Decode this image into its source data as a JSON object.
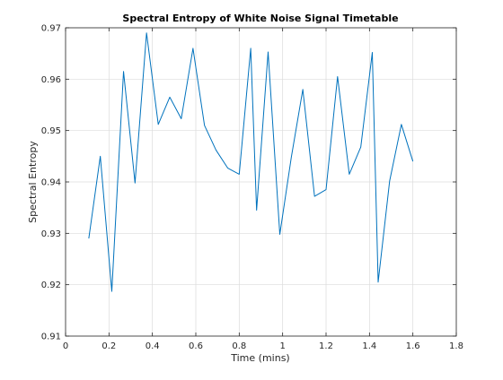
{
  "chart_data": {
    "type": "line",
    "title": "Spectral Entropy of White Noise Signal Timetable",
    "xlabel": "Time (mins)",
    "ylabel": "Spectral Entropy",
    "xlim": [
      0,
      1.8
    ],
    "ylim": [
      0.91,
      0.97
    ],
    "grid": true,
    "x_ticks": [
      0,
      0.2,
      0.4,
      0.6,
      0.8,
      1,
      1.2,
      1.4,
      1.6,
      1.8
    ],
    "x_tick_labels": [
      "0",
      "0.2",
      "0.4",
      "0.6",
      "0.8",
      "1",
      "1.2",
      "1.4",
      "1.6",
      "1.8"
    ],
    "y_ticks": [
      0.91,
      0.92,
      0.93,
      0.94,
      0.95,
      0.96,
      0.97
    ],
    "y_tick_labels": [
      "0.91",
      "0.92",
      "0.93",
      "0.94",
      "0.95",
      "0.96",
      "0.97"
    ],
    "colors": {
      "line": "#0072BD",
      "grid": "#dcdcdc",
      "axis": "#262626"
    },
    "series": [
      {
        "x": [
          0.107,
          0.16,
          0.213,
          0.267,
          0.32,
          0.373,
          0.427,
          0.48,
          0.533,
          0.587,
          0.64,
          0.693,
          0.747,
          0.8,
          0.853,
          0.88,
          0.933,
          0.987,
          1.04,
          1.093,
          1.147,
          1.2,
          1.253,
          1.307,
          1.36,
          1.413,
          1.44,
          1.493,
          1.547,
          1.6
        ],
        "y": [
          0.929,
          0.945,
          0.9187,
          0.9615,
          0.9398,
          0.969,
          0.9512,
          0.9565,
          0.9523,
          0.966,
          0.951,
          0.9462,
          0.9427,
          0.9415,
          0.966,
          0.9345,
          0.9653,
          0.9298,
          0.9448,
          0.958,
          0.9372,
          0.9385,
          0.9605,
          0.9415,
          0.9468,
          0.9652,
          0.9205,
          0.9402,
          0.9512,
          0.944
        ]
      }
    ]
  }
}
